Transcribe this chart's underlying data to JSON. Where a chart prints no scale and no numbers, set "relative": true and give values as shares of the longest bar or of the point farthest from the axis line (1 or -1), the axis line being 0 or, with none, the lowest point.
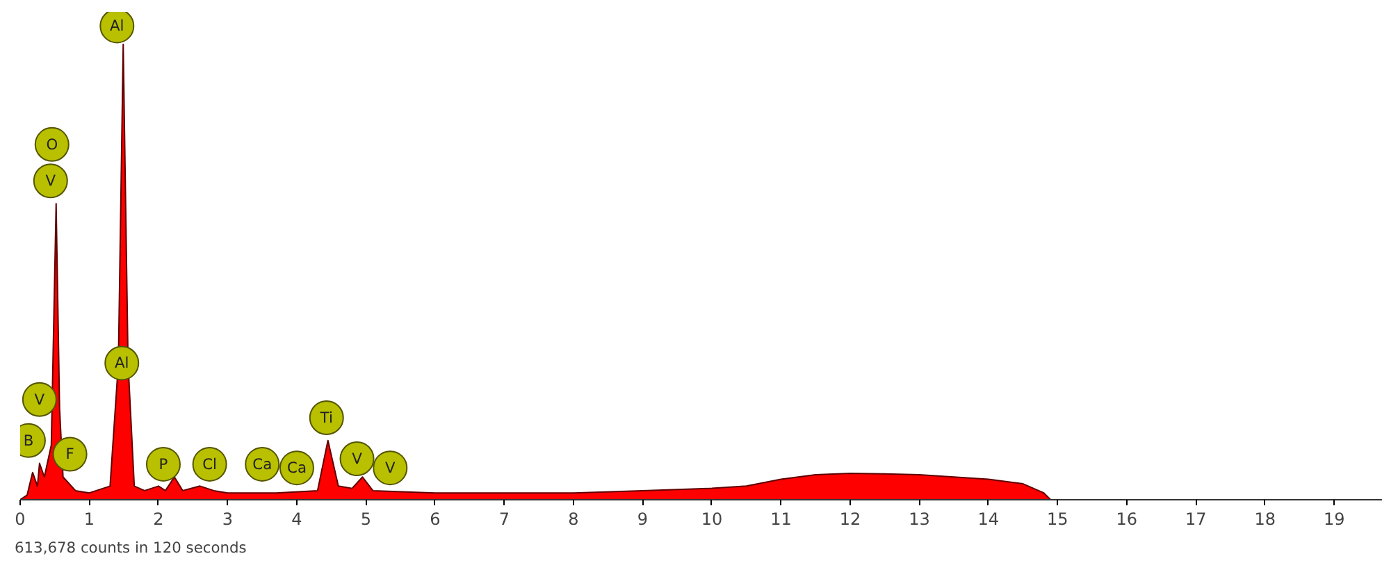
{
  "chart_data": {
    "type": "area",
    "relative": true,
    "color": "#ff0000",
    "x": [
      0,
      0.1,
      0.18,
      0.25,
      0.28,
      0.35,
      0.45,
      0.52,
      0.57,
      0.62,
      0.68,
      0.8,
      1.0,
      1.3,
      1.42,
      1.49,
      1.56,
      1.65,
      1.8,
      2.0,
      2.1,
      2.23,
      2.35,
      2.6,
      2.8,
      3.0,
      3.7,
      4.3,
      4.45,
      4.6,
      4.8,
      4.95,
      5.1,
      6,
      8,
      9,
      10,
      10.5,
      11,
      11.5,
      12,
      12.5,
      13,
      13.5,
      14,
      14.5,
      14.8,
      14.9,
      19.7
    ],
    "values": [
      0,
      0.01,
      0.06,
      0.03,
      0.08,
      0.05,
      0.12,
      0.65,
      0.2,
      0.05,
      0.04,
      0.02,
      0.015,
      0.03,
      0.3,
      1.0,
      0.3,
      0.03,
      0.02,
      0.03,
      0.02,
      0.05,
      0.02,
      0.03,
      0.02,
      0.015,
      0.015,
      0.02,
      0.13,
      0.03,
      0.025,
      0.05,
      0.02,
      0.015,
      0.015,
      0.02,
      0.025,
      0.03,
      0.045,
      0.055,
      0.058,
      0.057,
      0.055,
      0.05,
      0.045,
      0.035,
      0.015,
      0,
      0
    ],
    "xlim": [
      0,
      19.7
    ],
    "xticks": [
      0,
      1,
      2,
      3,
      4,
      5,
      6,
      7,
      8,
      9,
      10,
      11,
      12,
      13,
      14,
      15,
      16,
      17,
      18,
      19
    ],
    "grid": false,
    "annotations": [
      {
        "text": "Al",
        "x": 1.4,
        "y": 1.04
      },
      {
        "text": "O",
        "x": 0.46,
        "y": 0.78
      },
      {
        "text": "V",
        "x": 0.44,
        "y": 0.7
      },
      {
        "text": "Al",
        "x": 1.47,
        "y": 0.3
      },
      {
        "text": "V",
        "x": 0.28,
        "y": 0.22
      },
      {
        "text": "B",
        "x": 0.12,
        "y": 0.13
      },
      {
        "text": "F",
        "x": 0.72,
        "y": 0.1
      },
      {
        "text": "P",
        "x": 2.07,
        "y": 0.078
      },
      {
        "text": "Cl",
        "x": 2.74,
        "y": 0.078
      },
      {
        "text": "Ca",
        "x": 3.5,
        "y": 0.078
      },
      {
        "text": "Ca",
        "x": 4.0,
        "y": 0.07
      },
      {
        "text": "Ti",
        "x": 4.43,
        "y": 0.18
      },
      {
        "text": "V",
        "x": 4.87,
        "y": 0.09
      },
      {
        "text": "V",
        "x": 5.35,
        "y": 0.07
      },
      "613,678 counts in 120 seconds"
    ]
  }
}
